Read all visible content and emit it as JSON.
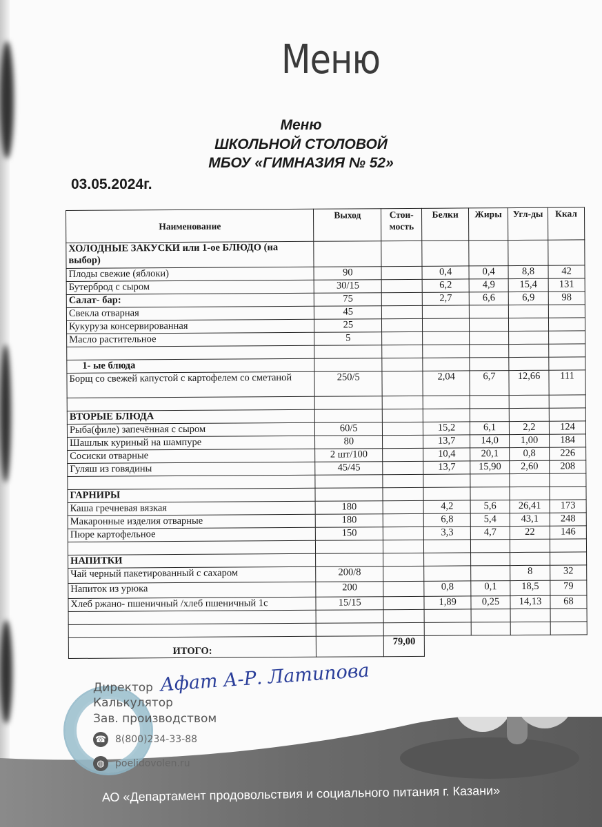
{
  "handwritten_title": "Меню",
  "header": {
    "line1": "Меню",
    "line2": "ШКОЛЬНОЙ СТОЛОВОЙ",
    "line3": "МБОУ «ГИМНАЗИЯ № 52»"
  },
  "date": "03.05.2024г.",
  "table": {
    "columns": [
      "Наименование",
      "Выход",
      "Стои-мость",
      "Белки",
      "Жиры",
      "Угл-ды",
      "Ккал"
    ],
    "rows": [
      {
        "name": "ХОЛОДНЫЕ ЗАКУСКИ или 1-ое БЛЮДО (на выбор)",
        "style": "bold",
        "h": 37
      },
      {
        "name": "Плоды свежие (яблоки)",
        "out": "90",
        "protein": "0,4",
        "fat": "0,4",
        "carbs": "8,8",
        "kcal": "42"
      },
      {
        "name": "Бутерброд с сыром",
        "out": "30/15",
        "protein": "6,2",
        "fat": "4,9",
        "carbs": "15,4",
        "kcal": "131"
      },
      {
        "name": "Салат- бар:",
        "style": "bold",
        "out": "75",
        "protein": "2,7",
        "fat": "6,6",
        "carbs": "6,9",
        "kcal": "98"
      },
      {
        "name": "Свекла отварная",
        "out": "45"
      },
      {
        "name": "Кукуруза консервированная",
        "out": "25"
      },
      {
        "name": "Масло растительное",
        "out": "5"
      },
      {
        "name": ""
      },
      {
        "name": "1-   ые блюда",
        "style": "bold indent"
      },
      {
        "name": "Борщ со свежей капустой с картофелем со сметаной",
        "out": "250/5",
        "protein": "2,04",
        "fat": "6,7",
        "carbs": "12,66",
        "kcal": "111",
        "h": 36
      },
      {
        "name": ""
      },
      {
        "name": "ВТОРЫЕ БЛЮДА",
        "style": "bold"
      },
      {
        "name": "Рыба(филе) запечённая с сыром",
        "out": "60/5",
        "protein": "15,2",
        "fat": "6,1",
        "carbs": "2,2",
        "kcal": "124"
      },
      {
        "name": "Шашлык куриный на шампуре",
        "out": "80",
        "protein": "13,7",
        "fat": "14,0",
        "carbs": "1,00",
        "kcal": "184"
      },
      {
        "name": "Сосиски отварные",
        "out": "2 шт/100",
        "protein": "10,4",
        "fat": "20,1",
        "carbs": "0,8",
        "kcal": "226"
      },
      {
        "name": "Гуляш из говядины",
        "out": "45/45",
        "protein": "13,7",
        "fat": "15,90",
        "carbs": "2,60",
        "kcal": "208"
      },
      {
        "name": ""
      },
      {
        "name": "ГАРНИРЫ",
        "style": "bold"
      },
      {
        "name": "Каша гречневая вязкая",
        "out": "180",
        "protein": "4,2",
        "fat": "5,6",
        "carbs": "26,41",
        "kcal": "173"
      },
      {
        "name": "Макаронные изделия отварные",
        "out": "180",
        "protein": "6,8",
        "fat": "5,4",
        "carbs": "43,1",
        "kcal": "248"
      },
      {
        "name": "Пюре картофельное",
        "out": "150",
        "protein": "3,3",
        "fat": "4,7",
        "carbs": "22",
        "kcal": "146"
      },
      {
        "name": ""
      },
      {
        "name": "НАПИТКИ",
        "style": "bold"
      },
      {
        "name": "Чай черный пакетированный с сахаром",
        "out": "200/8",
        "carbs": "8",
        "kcal": "32",
        "h": 22
      },
      {
        "name": "Напиток из урюка",
        "out": "200",
        "protein": "0,8",
        "fat": "0,1",
        "carbs": "18,5",
        "kcal": "79",
        "h": 22
      },
      {
        "name": "Хлеб ржано- пшеничный /хлеб пшеничный 1с",
        "out": "15/15",
        "protein": "1,89",
        "fat": "0,25",
        "carbs": "14,13",
        "kcal": "68"
      },
      {
        "name": ""
      },
      {
        "name": ""
      }
    ],
    "total_label": "ИТОГО:",
    "total_cost": "79,00"
  },
  "signatures": {
    "director": "Директор",
    "calculator": "Калькулятор",
    "production_head": "Зав. производством",
    "signature_text": "Афат  А-Р. Латипова"
  },
  "contacts": {
    "phone_icon": "phone-icon",
    "phone": "8(800)234-33-88",
    "web_icon": "globe-icon",
    "website": "poelidovolen.ru"
  },
  "footer": "АО «Департамент продовольствия и социального питания г. Казани»",
  "colors": {
    "banner": "#6e6e6e",
    "signature": "#2b3f9a",
    "stamp": "#8fb7c8"
  }
}
